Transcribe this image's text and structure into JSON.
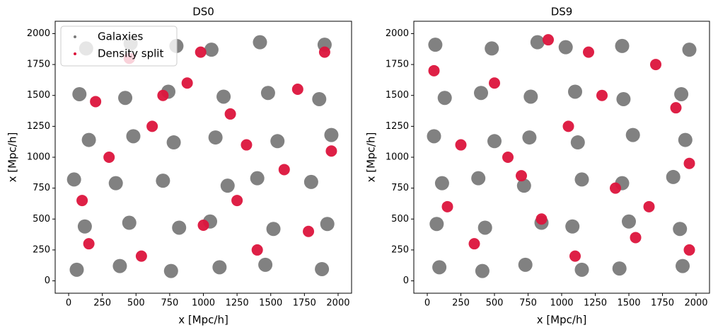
{
  "chart_data": [
    {
      "type": "scatter",
      "title": "DS0",
      "xlabel": "x [Mpc/h]",
      "ylabel": "x [Mpc/h]",
      "xlim": [
        -100,
        2100
      ],
      "ylim": [
        -100,
        2100
      ],
      "xticks": [
        0,
        250,
        500,
        750,
        1000,
        1250,
        1500,
        1750,
        2000
      ],
      "yticks": [
        0,
        250,
        500,
        750,
        1000,
        1250,
        1500,
        1750,
        2000
      ],
      "legend": "upper left",
      "series": [
        {
          "name": "Galaxies",
          "color": "#7a7a7a",
          "x": [
            60,
            380,
            760,
            1120,
            1460,
            1880,
            120,
            450,
            820,
            1050,
            1520,
            1920,
            40,
            350,
            700,
            1180,
            1400,
            1800,
            150,
            480,
            780,
            1090,
            1550,
            1950,
            80,
            420,
            740,
            1150,
            1480,
            1860,
            130,
            460,
            800,
            1060,
            1420,
            1900
          ],
          "y": [
            90,
            120,
            80,
            110,
            130,
            95,
            440,
            470,
            430,
            480,
            420,
            460,
            820,
            790,
            810,
            770,
            830,
            800,
            1140,
            1170,
            1120,
            1160,
            1130,
            1180,
            1510,
            1480,
            1530,
            1490,
            1520,
            1470,
            1880,
            1920,
            1900,
            1870,
            1930,
            1910
          ]
        },
        {
          "name": "Density split",
          "color": "#dc143c",
          "x": [
            150,
            300,
            620,
            980,
            1250,
            1700,
            1950,
            200,
            540,
            880,
            1320,
            1780,
            100,
            450,
            1000,
            1600,
            1900,
            700,
            1200,
            1400
          ],
          "y": [
            300,
            1000,
            1250,
            1850,
            650,
            1550,
            1050,
            1450,
            200,
            1600,
            1100,
            400,
            650,
            1800,
            450,
            900,
            1850,
            1500,
            1350,
            250
          ]
        }
      ]
    },
    {
      "type": "scatter",
      "title": "DS9",
      "xlabel": "x [Mpc/h]",
      "ylabel": "x [Mpc/h]",
      "xlim": [
        -100,
        2100
      ],
      "ylim": [
        -100,
        2100
      ],
      "xticks": [
        0,
        250,
        500,
        750,
        1000,
        1250,
        1500,
        1750,
        2000
      ],
      "yticks": [
        0,
        250,
        500,
        750,
        1000,
        1250,
        1500,
        1750,
        2000
      ],
      "series": [
        {
          "color": "#7a7a7a",
          "x": [
            90,
            410,
            730,
            1150,
            1430,
            1900,
            70,
            430,
            850,
            1080,
            1500,
            1880,
            110,
            380,
            720,
            1150,
            1450,
            1830,
            50,
            500,
            760,
            1120,
            1530,
            1920,
            130,
            400,
            770,
            1100,
            1460,
            1890,
            60,
            480,
            820,
            1030,
            1450,
            1950
          ],
          "y": [
            110,
            80,
            130,
            90,
            100,
            120,
            460,
            430,
            470,
            440,
            480,
            420,
            790,
            830,
            770,
            820,
            790,
            840,
            1170,
            1130,
            1160,
            1120,
            1180,
            1140,
            1480,
            1520,
            1490,
            1530,
            1470,
            1510,
            1910,
            1880,
            1930,
            1890,
            1900,
            1870
          ]
        },
        {
          "color": "#dc143c",
          "x": [
            50,
            350,
            700,
            1050,
            1300,
            1650,
            1950,
            250,
            500,
            850,
            1200,
            1550,
            1850,
            600,
            1100,
            1700,
            150,
            900,
            1400,
            1950
          ],
          "y": [
            1700,
            300,
            850,
            1250,
            1500,
            600,
            950,
            1100,
            1600,
            500,
            1850,
            350,
            1400,
            1000,
            200,
            1750,
            600,
            1950,
            750,
            250
          ]
        }
      ]
    }
  ]
}
